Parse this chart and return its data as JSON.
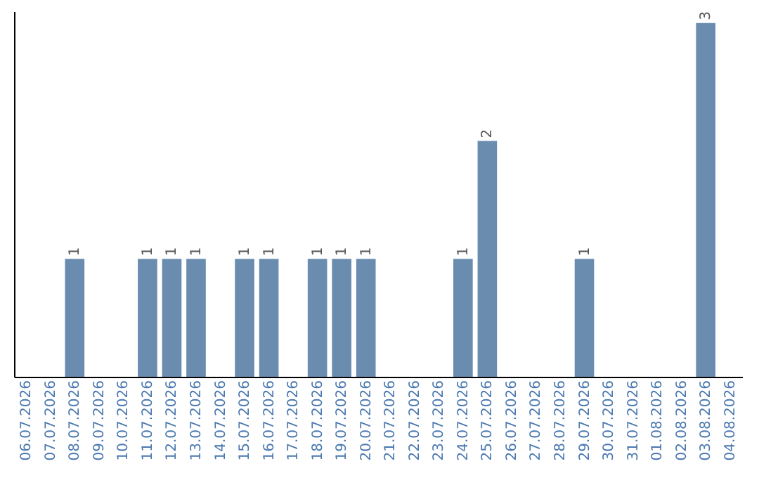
{
  "chart_data": {
    "type": "bar",
    "categories": [
      "06.07.2026",
      "07.07.2026",
      "08.07.2026",
      "09.07.2026",
      "10.07.2026",
      "11.07.2026",
      "12.07.2026",
      "13.07.2026",
      "14.07.2026",
      "15.07.2026",
      "16.07.2026",
      "17.07.2026",
      "18.07.2026",
      "19.07.2026",
      "20.07.2026",
      "21.07.2026",
      "22.07.2026",
      "23.07.2026",
      "24.07.2026",
      "25.07.2026",
      "26.07.2026",
      "27.07.2026",
      "28.07.2026",
      "29.07.2026",
      "30.07.2026",
      "31.07.2026",
      "01.08.2026",
      "02.08.2026",
      "03.08.2026",
      "04.08.2026"
    ],
    "values": [
      0,
      0,
      1,
      0,
      0,
      1,
      1,
      1,
      0,
      1,
      1,
      0,
      1,
      1,
      1,
      0,
      0,
      0,
      1,
      2,
      0,
      0,
      0,
      1,
      0,
      0,
      0,
      0,
      3,
      0
    ],
    "value_labels": [
      null,
      null,
      "1",
      null,
      null,
      "1",
      "1",
      "1",
      null,
      "1",
      "1",
      null,
      "1",
      "1",
      "1",
      null,
      null,
      null,
      "1",
      "2",
      null,
      null,
      null,
      "1",
      null,
      null,
      null,
      null,
      "3",
      null
    ],
    "color": "#6a8caf",
    "ylim": [
      0,
      3.1
    ],
    "tick_labels": "x",
    "grid": false
  }
}
